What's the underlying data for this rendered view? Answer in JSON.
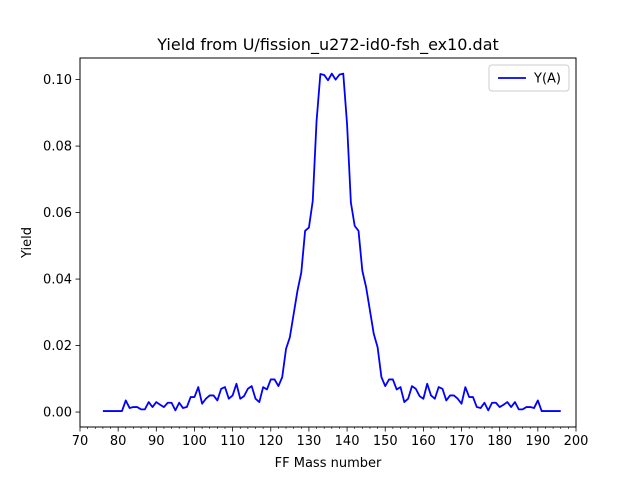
{
  "chart_data": {
    "type": "line",
    "title": "Yield from  U/fission_u272-id0-fsh_ex10.dat",
    "xlabel": "FF Mass number",
    "ylabel": "Yield",
    "xlim": [
      70,
      200
    ],
    "ylim": [
      -0.0045,
      0.1065
    ],
    "xticks": [
      70,
      80,
      90,
      100,
      110,
      120,
      130,
      140,
      150,
      160,
      170,
      180,
      190,
      200
    ],
    "xtick_labels": [
      "70",
      "80",
      "90",
      "100",
      "110",
      "120",
      "130",
      "140",
      "150",
      "160",
      "170",
      "180",
      "190",
      "200"
    ],
    "x_minor_step": 2,
    "yticks": [
      0.0,
      0.02,
      0.04,
      0.06,
      0.08,
      0.1
    ],
    "ytick_labels": [
      "0.00",
      "0.02",
      "0.04",
      "0.06",
      "0.08",
      "0.10"
    ],
    "grid": false,
    "legend_position": "top-right",
    "series": [
      {
        "name": "Y(A)",
        "color": "#0000ff",
        "x": [
          76,
          77,
          78,
          79,
          80,
          81,
          82,
          83,
          84,
          85,
          86,
          87,
          88,
          89,
          90,
          91,
          92,
          93,
          94,
          95,
          96,
          97,
          98,
          99,
          100,
          101,
          102,
          103,
          104,
          105,
          106,
          107,
          108,
          109,
          110,
          111,
          112,
          113,
          114,
          115,
          116,
          117,
          118,
          119,
          120,
          121,
          122,
          123,
          124,
          125,
          126,
          127,
          128,
          129,
          130,
          131,
          132,
          133,
          134,
          135,
          136,
          137,
          138,
          139,
          140,
          141,
          142,
          143,
          144,
          145,
          146,
          147,
          148,
          149,
          150,
          151,
          152,
          153,
          154,
          155,
          156,
          157,
          158,
          159,
          160,
          161,
          162,
          163,
          164,
          165,
          166,
          167,
          168,
          169,
          170,
          171,
          172,
          173,
          174,
          175,
          176,
          177,
          178,
          179,
          180,
          181,
          182,
          183,
          184,
          185,
          186,
          187,
          188,
          189,
          190,
          191,
          192,
          193,
          194,
          195,
          196
        ],
        "y": [
          0.0003,
          0.0003,
          0.0003,
          0.0003,
          0.0003,
          0.0003,
          0.0035,
          0.0012,
          0.0015,
          0.0015,
          0.0008,
          0.0008,
          0.003,
          0.0015,
          0.003,
          0.0022,
          0.0015,
          0.0028,
          0.0028,
          0.0005,
          0.0028,
          0.0012,
          0.0015,
          0.0045,
          0.0045,
          0.0075,
          0.0025,
          0.004,
          0.005,
          0.005,
          0.0035,
          0.007,
          0.0075,
          0.004,
          0.005,
          0.0085,
          0.004,
          0.0048,
          0.007,
          0.0078,
          0.004,
          0.003,
          0.0075,
          0.0068,
          0.0098,
          0.0098,
          0.0078,
          0.0105,
          0.019,
          0.0225,
          0.0295,
          0.0365,
          0.042,
          0.0545,
          0.0555,
          0.0635,
          0.0875,
          0.1017,
          0.1014,
          0.0998,
          0.1018,
          0.1,
          0.1015,
          0.1018,
          0.0865,
          0.063,
          0.056,
          0.0545,
          0.0425,
          0.0375,
          0.0305,
          0.0235,
          0.0195,
          0.0105,
          0.0078,
          0.0098,
          0.0098,
          0.0068,
          0.0075,
          0.003,
          0.004,
          0.0078,
          0.007,
          0.0048,
          0.004,
          0.0085,
          0.005,
          0.004,
          0.0075,
          0.007,
          0.0035,
          0.005,
          0.005,
          0.004,
          0.0025,
          0.0075,
          0.0045,
          0.0045,
          0.0015,
          0.0012,
          0.0028,
          0.0005,
          0.0028,
          0.0028,
          0.0015,
          0.0022,
          0.003,
          0.0015,
          0.003,
          0.0008,
          0.0008,
          0.0015,
          0.0015,
          0.0012,
          0.0035,
          0.0003,
          0.0003,
          0.0003,
          0.0003,
          0.0003,
          0.0003
        ]
      }
    ]
  }
}
